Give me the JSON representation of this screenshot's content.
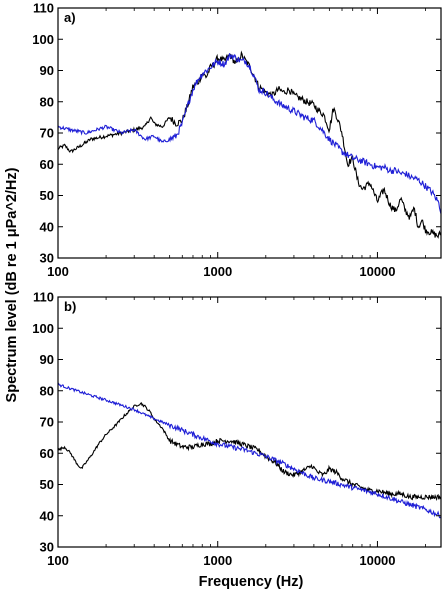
{
  "figure": {
    "ylabel": "Spectrum level (dB re 1 μPa^2/Hz)",
    "xlabel": "Frequency (Hz)"
  },
  "chart_data": [
    {
      "type": "line",
      "panel_label": "a)",
      "xscale": "log",
      "xlim": [
        100,
        25000
      ],
      "ylim": [
        30,
        110
      ],
      "xticks": [
        100,
        1000,
        10000
      ],
      "xtick_labels": [
        "100",
        "1000",
        "10000"
      ],
      "yticks": [
        30,
        40,
        50,
        60,
        70,
        80,
        90,
        100,
        110
      ],
      "ytick_labels": [
        "30",
        "40",
        "50",
        "60",
        "70",
        "80",
        "90",
        "100",
        "110"
      ],
      "grid": false,
      "series": [
        {
          "color": "#000000",
          "x": [
            100,
            110,
            120,
            140,
            160,
            200,
            250,
            300,
            350,
            380,
            400,
            450,
            500,
            550,
            600,
            650,
            700,
            750,
            800,
            850,
            900,
            950,
            1000,
            1100,
            1200,
            1300,
            1400,
            1500,
            1600,
            1700,
            1800,
            2000,
            2200,
            2400,
            2600,
            2800,
            3000,
            3300,
            3600,
            4000,
            4300,
            4600,
            5000,
            5300,
            5600,
            6000,
            6500,
            7000,
            7500,
            8000,
            9000,
            10000,
            11000,
            12000,
            13000,
            14000,
            15000,
            16000,
            17000,
            18000,
            19000,
            20000,
            22000,
            24000,
            25000
          ],
          "y": [
            65,
            66,
            64,
            66,
            68,
            69,
            70,
            71,
            72,
            75,
            73,
            72,
            75,
            73,
            74,
            79,
            85,
            86,
            89,
            88,
            91,
            92,
            94,
            93,
            95,
            92,
            95,
            93,
            91,
            88,
            85,
            83,
            82,
            84,
            83,
            84,
            82,
            81,
            80,
            79,
            77,
            76,
            71,
            78,
            75,
            70,
            60,
            62,
            55,
            52,
            54,
            48,
            52,
            47,
            45,
            49,
            45,
            43,
            46,
            40,
            42,
            39,
            38,
            37,
            38
          ]
        },
        {
          "color": "#1f1fd6",
          "x": [
            100,
            120,
            150,
            200,
            250,
            300,
            350,
            400,
            450,
            500,
            550,
            600,
            650,
            700,
            750,
            800,
            850,
            900,
            1000,
            1100,
            1200,
            1300,
            1400,
            1500,
            1600,
            1700,
            1800,
            2000,
            2200,
            2500,
            3000,
            3500,
            4000,
            4500,
            5000,
            5500,
            6000,
            7000,
            8000,
            9000,
            10000,
            11000,
            12000,
            13000,
            14000,
            15000,
            16000,
            18000,
            20000,
            22000,
            24000,
            25000
          ],
          "y": [
            72,
            71,
            70,
            72,
            70,
            71,
            68,
            69,
            67,
            68,
            69,
            73,
            79,
            84,
            87,
            89,
            90,
            91,
            93,
            92,
            95,
            94,
            93,
            93,
            91,
            88,
            84,
            83,
            81,
            79,
            77,
            75,
            74,
            71,
            68,
            66,
            64,
            62,
            61,
            60,
            59,
            59,
            58,
            58,
            57,
            57,
            56,
            55,
            53,
            51,
            48,
            45
          ]
        }
      ]
    },
    {
      "type": "line",
      "panel_label": "b)",
      "xscale": "log",
      "xlim": [
        100,
        25000
      ],
      "ylim": [
        30,
        110
      ],
      "xticks": [
        100,
        1000,
        10000
      ],
      "xtick_labels": [
        "100",
        "1000",
        "10000"
      ],
      "yticks": [
        30,
        40,
        50,
        60,
        70,
        80,
        90,
        100,
        110
      ],
      "ytick_labels": [
        "30",
        "40",
        "50",
        "60",
        "70",
        "80",
        "90",
        "100",
        "110"
      ],
      "grid": false,
      "series": [
        {
          "color": "#000000",
          "x": [
            100,
            110,
            120,
            130,
            140,
            160,
            180,
            200,
            230,
            260,
            300,
            330,
            350,
            380,
            400,
            450,
            500,
            600,
            700,
            800,
            900,
            1000,
            1200,
            1400,
            1600,
            1800,
            2000,
            2300,
            2600,
            3000,
            3300,
            3600,
            3900,
            4200,
            4600,
            5000,
            5500,
            6000,
            7000,
            8000,
            9000,
            10000,
            12000,
            14000,
            16000,
            18000,
            20000,
            22000,
            25000
          ],
          "y": [
            61,
            62,
            60,
            57,
            55,
            59,
            63,
            66,
            69,
            72,
            75,
            76,
            75,
            73,
            71,
            68,
            64,
            62,
            62,
            63,
            63,
            64,
            64,
            63,
            62,
            61,
            59,
            57,
            54,
            53,
            54,
            55,
            56,
            54,
            53,
            55,
            54,
            52,
            50,
            49,
            48,
            48,
            47,
            47,
            46,
            46,
            46,
            46,
            46
          ]
        },
        {
          "color": "#1f1fd6",
          "x": [
            100,
            150,
            200,
            300,
            400,
            500,
            700,
            1000,
            1500,
            2000,
            2500,
            3000,
            4000,
            5000,
            7000,
            10000,
            15000,
            20000,
            25000
          ],
          "y": [
            82,
            79,
            77,
            74,
            71,
            69,
            66,
            63,
            61,
            59,
            57,
            55,
            52,
            51,
            49,
            47,
            44,
            42,
            40
          ]
        }
      ]
    }
  ]
}
